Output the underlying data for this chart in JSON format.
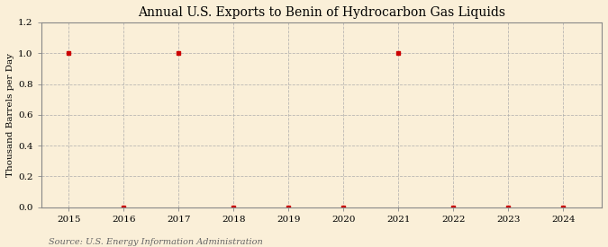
{
  "title": "Annual U.S. Exports to Benin of Hydrocarbon Gas Liquids",
  "ylabel": "Thousand Barrels per Day",
  "source": "Source: U.S. Energy Information Administration",
  "x_years": [
    2015,
    2016,
    2017,
    2018,
    2019,
    2020,
    2021,
    2022,
    2023,
    2024
  ],
  "y_values": [
    1.0,
    0.0,
    1.0,
    0.0,
    0.0,
    0.0,
    1.0,
    0.0,
    0.0,
    0.0
  ],
  "xlim": [
    2014.5,
    2024.7
  ],
  "ylim": [
    0.0,
    1.2
  ],
  "yticks": [
    0.0,
    0.2,
    0.4,
    0.6,
    0.8,
    1.0,
    1.2
  ],
  "xticks": [
    2015,
    2016,
    2017,
    2018,
    2019,
    2020,
    2021,
    2022,
    2023,
    2024
  ],
  "background_color": "#faefd8",
  "marker_color": "#cc0000",
  "marker_style": "s",
  "marker_size": 3.5,
  "grid_color": "#aaaaaa",
  "title_fontsize": 10,
  "label_fontsize": 7.5,
  "tick_fontsize": 7.5,
  "source_fontsize": 7
}
